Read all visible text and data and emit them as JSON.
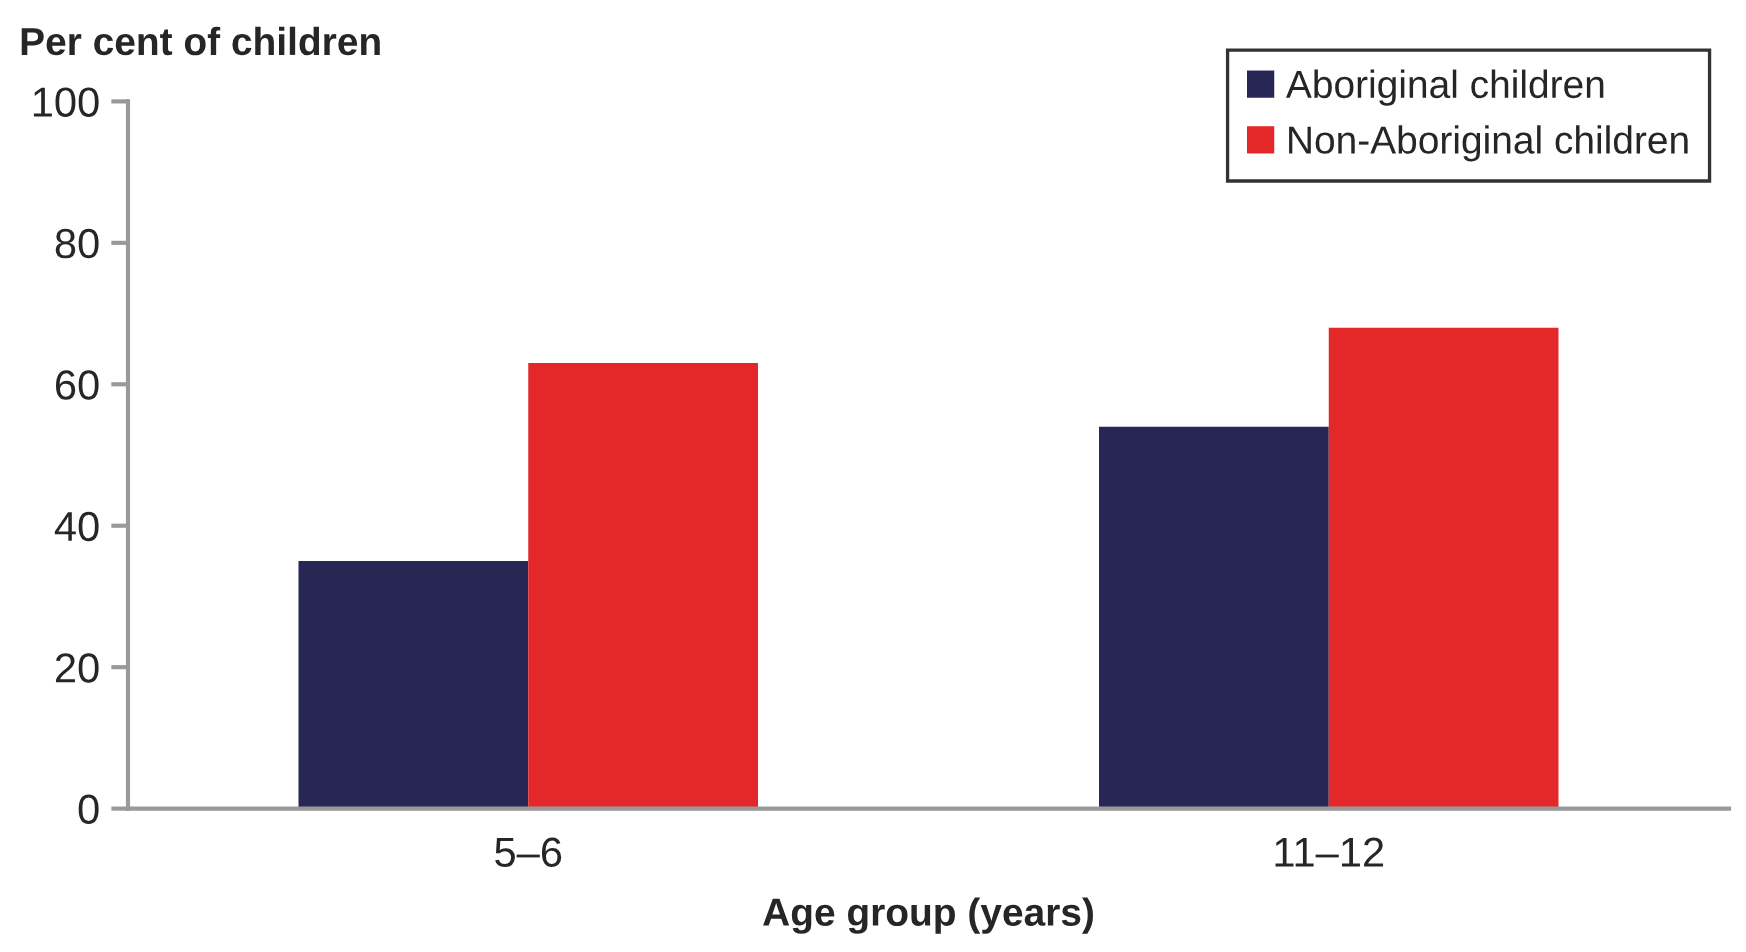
{
  "chart_data": {
    "type": "bar",
    "xlabel": "Age group (years)",
    "ylabel": "Per cent of children",
    "categories": [
      "5–6",
      "11–12"
    ],
    "series": [
      {
        "name": "Aboriginal children",
        "color": "#282654",
        "values": [
          35,
          54
        ]
      },
      {
        "name": "Non-Aboriginal children",
        "color": "#e4282a",
        "values": [
          63,
          68
        ]
      }
    ],
    "ylim": [
      0,
      100
    ],
    "yticks": [
      0,
      20,
      40,
      60,
      80,
      100
    ],
    "grid": false,
    "legend": "top right"
  }
}
